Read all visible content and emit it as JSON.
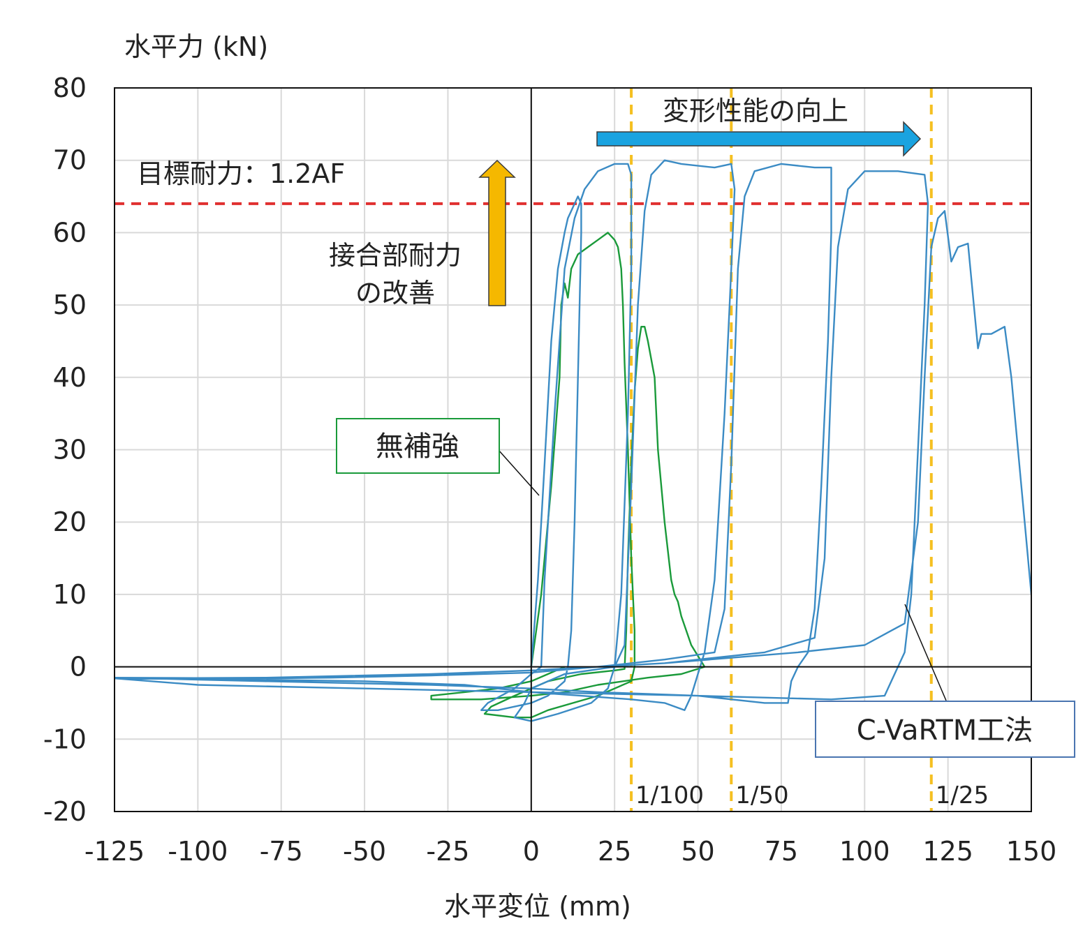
{
  "chart_data": {
    "type": "line",
    "xlabel": "水平変位 (mm)",
    "ylabel": "水平力 (kN)",
    "xlim": [
      -125,
      150
    ],
    "ylim": [
      -20,
      80
    ],
    "x_ticks": [
      -125,
      -100,
      -75,
      -50,
      -25,
      0,
      25,
      50,
      75,
      100,
      125,
      150
    ],
    "y_ticks": [
      -20,
      -10,
      0,
      10,
      20,
      30,
      40,
      50,
      60,
      70,
      80
    ],
    "x_tick_labels": [
      "-125",
      "-100",
      "-75",
      "-50",
      "-25",
      "0",
      "25",
      "50",
      "75",
      "100",
      "125",
      "150"
    ],
    "y_tick_labels": [
      "-20",
      "-10",
      "0",
      "10",
      "20",
      "30",
      "40",
      "50",
      "60",
      "70",
      "80"
    ],
    "grid": true,
    "target_line": {
      "label": "目標耐力：1.2AF",
      "y": 64,
      "color": "#e03030"
    },
    "reference_lines": [
      {
        "label": "1/100",
        "x": 30
      },
      {
        "label": "1/50",
        "x": 60
      },
      {
        "label": "1/25",
        "x": 120
      }
    ],
    "reference_color": "#f5c021",
    "annotations": {
      "joint_strength_line1": "接合部耐力",
      "joint_strength_line2": "の改善",
      "deformation": "変形性能の向上"
    },
    "arrow_colors": {
      "up": "#f5b800",
      "right": "#1aa3e0"
    },
    "series": [
      {
        "name": "無補強",
        "color": "#1a9a3a",
        "points": [
          [
            0,
            0
          ],
          [
            3,
            10
          ],
          [
            6,
            25
          ],
          [
            8.5,
            40
          ],
          [
            9,
            50
          ],
          [
            10,
            53
          ],
          [
            11,
            51
          ],
          [
            12,
            55
          ],
          [
            14,
            57
          ],
          [
            17,
            58
          ],
          [
            20,
            59
          ],
          [
            23,
            60
          ],
          [
            25,
            59
          ],
          [
            26,
            58
          ],
          [
            27,
            55
          ],
          [
            27.5,
            50
          ],
          [
            28,
            42
          ],
          [
            29,
            30
          ],
          [
            30,
            15
          ],
          [
            31,
            5
          ],
          [
            31,
            0
          ],
          [
            30,
            -2
          ],
          [
            20,
            -4
          ],
          [
            5,
            -6
          ],
          [
            0,
            -7
          ],
          [
            -5,
            -7
          ],
          [
            -14,
            -6.5
          ],
          [
            -12,
            -5.5
          ],
          [
            -5,
            -4
          ],
          [
            0,
            -3
          ],
          [
            5,
            -2
          ],
          [
            15,
            -1
          ],
          [
            25,
            -0.5
          ],
          [
            28,
            -0.3
          ],
          [
            28.5,
            5
          ],
          [
            29,
            15
          ],
          [
            30,
            28
          ],
          [
            31,
            38
          ],
          [
            32,
            44
          ],
          [
            33,
            47
          ],
          [
            34,
            47
          ],
          [
            35,
            45
          ],
          [
            37,
            40
          ],
          [
            38,
            30
          ],
          [
            40,
            20
          ],
          [
            42,
            12
          ],
          [
            43,
            10
          ],
          [
            44,
            9
          ],
          [
            45,
            7
          ],
          [
            48,
            3
          ],
          [
            52,
            0
          ],
          [
            45,
            -1
          ],
          [
            35,
            -1.5
          ],
          [
            20,
            -2.5
          ],
          [
            10,
            -3.5
          ],
          [
            0,
            -4
          ],
          [
            -15,
            -4.5
          ],
          [
            -30,
            -4.5
          ],
          [
            -30,
            -4
          ],
          [
            -20,
            -3.5
          ],
          [
            -10,
            -3
          ],
          [
            0,
            -2
          ],
          [
            5,
            -1
          ],
          [
            10,
            0
          ]
        ]
      },
      {
        "name": "C-VaRTM工法",
        "color": "#3b8bc4",
        "points": [
          [
            0,
            0
          ],
          [
            2,
            12
          ],
          [
            4,
            28
          ],
          [
            6,
            45
          ],
          [
            8,
            55
          ],
          [
            10,
            60
          ],
          [
            11,
            62
          ],
          [
            14,
            65
          ],
          [
            15,
            64
          ],
          [
            15,
            60
          ],
          [
            14,
            40
          ],
          [
            13,
            20
          ],
          [
            12,
            5
          ],
          [
            11,
            0
          ],
          [
            10,
            -2
          ],
          [
            5,
            -4
          ],
          [
            0,
            -5
          ],
          [
            -10,
            -6
          ],
          [
            -15,
            -6
          ],
          [
            -13,
            -5
          ],
          [
            -5,
            -3
          ],
          [
            0,
            -1
          ],
          [
            3,
            0
          ],
          [
            4,
            12
          ],
          [
            7,
            35
          ],
          [
            10,
            55
          ],
          [
            13,
            62
          ],
          [
            16,
            66
          ],
          [
            20,
            68.5
          ],
          [
            25,
            69.5
          ],
          [
            29,
            69.5
          ],
          [
            30,
            68
          ],
          [
            30,
            55
          ],
          [
            29,
            35
          ],
          [
            27,
            10
          ],
          [
            25,
            0
          ],
          [
            23,
            -3
          ],
          [
            18,
            -5
          ],
          [
            8,
            -6.5
          ],
          [
            0,
            -7.5
          ],
          [
            -5,
            -7
          ],
          [
            -2,
            -5
          ],
          [
            0,
            -3
          ],
          [
            10,
            -1
          ],
          [
            25,
            0
          ],
          [
            28,
            3
          ],
          [
            30,
            25
          ],
          [
            32,
            50
          ],
          [
            34,
            63
          ],
          [
            36,
            68
          ],
          [
            40,
            70
          ],
          [
            45,
            69.5
          ],
          [
            55,
            69
          ],
          [
            60,
            69.5
          ],
          [
            61,
            66
          ],
          [
            60,
            55
          ],
          [
            58,
            35
          ],
          [
            55,
            12
          ],
          [
            52,
            2
          ],
          [
            50,
            -1
          ],
          [
            48,
            -4
          ],
          [
            46,
            -6
          ],
          [
            40,
            -5
          ],
          [
            30,
            -4.5
          ],
          [
            15,
            -4
          ],
          [
            0,
            -3.5
          ],
          [
            -20,
            -2.5
          ],
          [
            -50,
            -2
          ],
          [
            -80,
            -1.8
          ],
          [
            -125,
            -1.6
          ],
          [
            -100,
            -1.7
          ],
          [
            -60,
            -1.5
          ],
          [
            -30,
            -1.2
          ],
          [
            0,
            -0.8
          ],
          [
            20,
            0
          ],
          [
            40,
            1
          ],
          [
            55,
            2
          ],
          [
            58,
            8
          ],
          [
            60,
            28
          ],
          [
            62,
            55
          ],
          [
            64,
            65
          ],
          [
            67,
            68.5
          ],
          [
            75,
            69.5
          ],
          [
            85,
            69
          ],
          [
            90,
            69
          ],
          [
            90,
            60
          ],
          [
            89,
            45
          ],
          [
            87,
            25
          ],
          [
            85,
            8
          ],
          [
            83,
            2
          ],
          [
            80,
            0
          ],
          [
            78,
            -2
          ],
          [
            77,
            -5
          ],
          [
            70,
            -5
          ],
          [
            50,
            -4
          ],
          [
            20,
            -3.5
          ],
          [
            0,
            -3
          ],
          [
            -30,
            -2.5
          ],
          [
            -80,
            -2
          ],
          [
            -125,
            -1.5
          ],
          [
            -80,
            -1.6
          ],
          [
            -30,
            -1
          ],
          [
            0,
            -0.5
          ],
          [
            40,
            0.5
          ],
          [
            70,
            2
          ],
          [
            85,
            4
          ],
          [
            88,
            15
          ],
          [
            90,
            40
          ],
          [
            92,
            58
          ],
          [
            95,
            66
          ],
          [
            100,
            68.5
          ],
          [
            110,
            68.5
          ],
          [
            118,
            68
          ],
          [
            119,
            64
          ],
          [
            118,
            50
          ],
          [
            116,
            30
          ],
          [
            114,
            10
          ],
          [
            112,
            2
          ],
          [
            110,
            0
          ],
          [
            108,
            -2
          ],
          [
            106,
            -4
          ],
          [
            90,
            -4.5
          ],
          [
            50,
            -4
          ],
          [
            0,
            -3.5
          ],
          [
            -50,
            -3
          ],
          [
            -100,
            -2.5
          ],
          [
            -125,
            -1.6
          ],
          [
            -80,
            -1.5
          ],
          [
            -30,
            -1
          ],
          [
            0,
            -0.5
          ],
          [
            40,
            0.5
          ],
          [
            80,
            2
          ],
          [
            100,
            3
          ],
          [
            112,
            6
          ],
          [
            116,
            20
          ],
          [
            118,
            40
          ],
          [
            120,
            58
          ],
          [
            122,
            62
          ],
          [
            124,
            63
          ],
          [
            126,
            56
          ],
          [
            128,
            58
          ],
          [
            131,
            58.5
          ],
          [
            134,
            44
          ],
          [
            135,
            46
          ],
          [
            138,
            46
          ],
          [
            142,
            47
          ],
          [
            144,
            40
          ],
          [
            146,
            30
          ],
          [
            148,
            20
          ],
          [
            150,
            10
          ]
        ]
      }
    ],
    "series_callouts": [
      "無補強",
      "C-VaRTM工法"
    ]
  }
}
